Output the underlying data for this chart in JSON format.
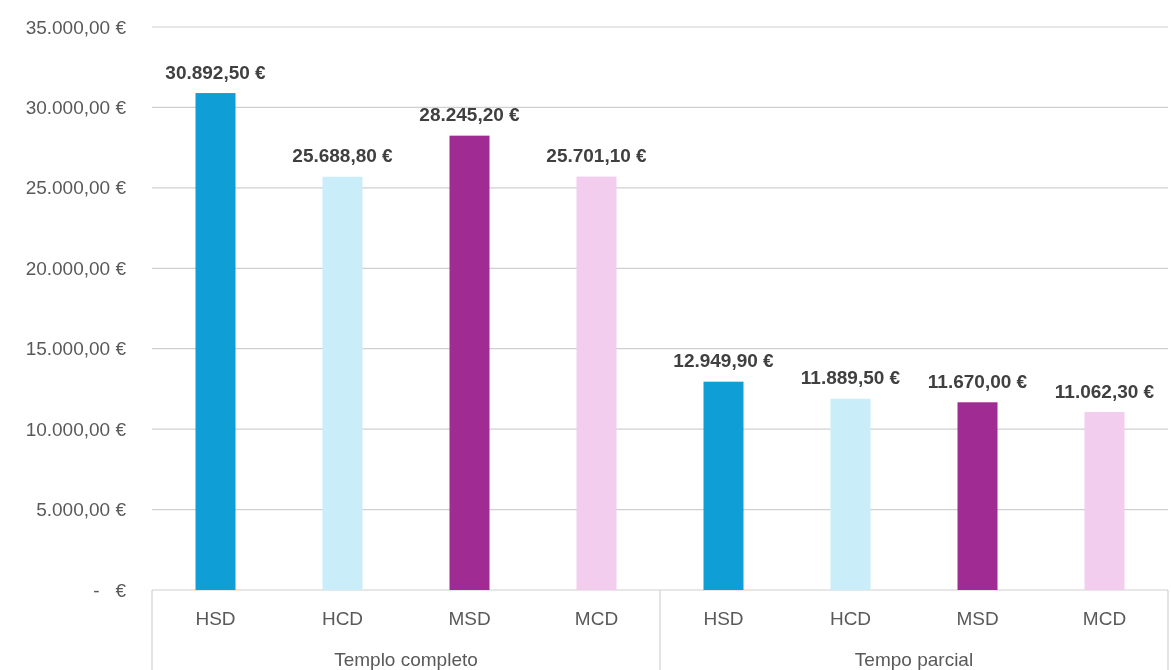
{
  "chart_data": {
    "type": "bar",
    "categories": [
      "Templo completo",
      "Tempo parcial"
    ],
    "series": [
      {
        "name": "HSD",
        "color": "#0f9ed5",
        "values": [
          30892.5,
          12949.9
        ],
        "value_labels": [
          "30.892,50 €",
          "12.949,90 €"
        ]
      },
      {
        "name": "HCD",
        "color": "#caedfa",
        "values": [
          25688.8,
          11889.5
        ],
        "value_labels": [
          "25.688,80 €",
          "11.889,50 €"
        ]
      },
      {
        "name": "MSD",
        "color": "#a02b93",
        "values": [
          28245.2,
          11670.0
        ],
        "value_labels": [
          "28.245,20 €",
          "11.670,00 €"
        ]
      },
      {
        "name": "MCD",
        "color": "#f2cdee",
        "values": [
          25701.1,
          11062.3
        ],
        "value_labels": [
          "25.701,10 €",
          "11.062,30 €"
        ]
      }
    ],
    "ylim": [
      0,
      35000
    ],
    "yticks": [
      {
        "value": 0,
        "label": "-   €"
      },
      {
        "value": 5000,
        "label": "5.000,00 €"
      },
      {
        "value": 10000,
        "label": "10.000,00 €"
      },
      {
        "value": 15000,
        "label": "15.000,00 €"
      },
      {
        "value": 20000,
        "label": "20.000,00 €"
      },
      {
        "value": 25000,
        "label": "25.000,00 €"
      },
      {
        "value": 30000,
        "label": "30.000,00 €"
      },
      {
        "value": 35000,
        "label": "35.000,00 €"
      }
    ],
    "grid": "y"
  }
}
